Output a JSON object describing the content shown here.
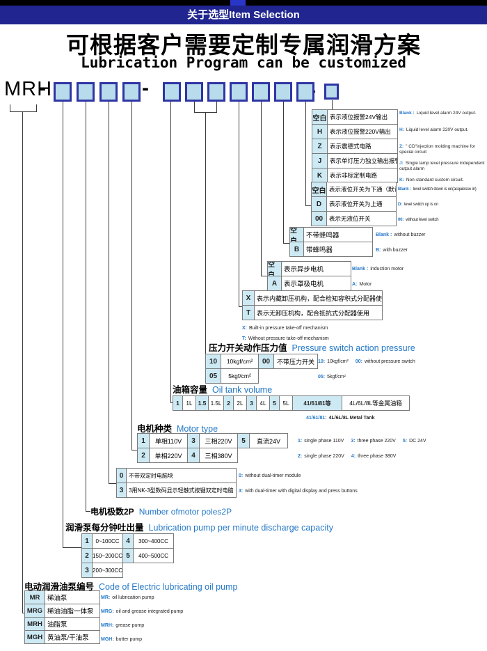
{
  "colors": {
    "navy": "#20258f",
    "tab_blue": "#2a36c8",
    "box_fill": "#b9dcec",
    "box_border": "#2e35a4",
    "cell_fill": "#cdeaf4",
    "blue_text": "#2579c8"
  },
  "header": {
    "bar_text": "关于选型Item Selection"
  },
  "title": {
    "zh": "可根据客户需要定制专属润滑方案",
    "en": "Lubrication Program can be customized"
  },
  "model": {
    "prefix": "MRH",
    "dash": "-"
  },
  "tables": {
    "circuit": {
      "rows": [
        [
          "空白",
          "表示液位报警24V输出"
        ],
        [
          "H",
          "表示液位报警220V输出"
        ],
        [
          "Z",
          "表示震德式电路"
        ],
        [
          "J",
          "表示单灯压力独立输出报警"
        ],
        [
          "K",
          "表示非标定制电路"
        ]
      ],
      "ann": [
        [
          {
            "c": "Blank :",
            "t": "Liquid level alarm 24V output."
          }
        ],
        [
          {
            "c": "H:",
            "t": "Liquid level alarm 220V output."
          }
        ],
        [
          {
            "c": "Z:",
            "t": "\" CD\"injection molding machine for special circuit"
          }
        ],
        [
          {
            "c": "J:",
            "t": "Single lamp level pressure independent output alarm"
          }
        ],
        [
          {
            "c": "K:",
            "t": "Non-standard custom circuit."
          }
        ]
      ]
    },
    "level_switch": {
      "rows": [
        [
          "空白",
          "表示液位开关为下通（默认）"
        ],
        [
          "D",
          "表示液位开关为上通"
        ],
        [
          "00",
          "表示无液位开关"
        ]
      ],
      "ann": [
        [
          {
            "c": "Blank :",
            "t": "level switch down is on(acquiesce in)"
          }
        ],
        [
          {
            "c": "D:",
            "t": "level switch up is on"
          }
        ],
        [
          {
            "c": "00:",
            "t": "without level switch"
          }
        ]
      ]
    },
    "buzzer": {
      "rows": [
        [
          "空白",
          "不带蜂鸣器"
        ],
        [
          "B",
          "带蜂鸣器"
        ]
      ],
      "ann": [
        [
          {
            "c": "Blank :",
            "t": "without buzzer"
          }
        ],
        [
          {
            "c": "B:",
            "t": "with buzzer"
          }
        ]
      ]
    },
    "motor_kind": {
      "rows": [
        [
          "空白",
          "表示异步电机"
        ],
        [
          "A",
          "表示罩极电机"
        ]
      ],
      "ann": [
        [
          {
            "c": "Blank :",
            "t": "induction motor"
          }
        ],
        [
          {
            "c": "A:",
            "t": "Motor"
          }
        ]
      ]
    },
    "relief": {
      "rows": [
        [
          "X",
          "表示内藏卸压机构，配合检知容积式分配器使用"
        ],
        [
          "T",
          "表示无卸压机构，配合抵抗式分配器使用"
        ]
      ],
      "ann": [
        [
          {
            "c": "X:",
            "t": "Built-in pressure take-off mechanism"
          }
        ],
        [
          {
            "c": "T:",
            "t": "Without pressure take-off mechanism"
          }
        ]
      ]
    },
    "pressure": {
      "title_zh": "压力开关动作压力值",
      "title_en": "Pressure switch action pressure",
      "rows": [
        [
          [
            "10",
            "10kgf/cm²"
          ],
          [
            "00",
            "不带压力开关"
          ]
        ],
        [
          [
            "05",
            "5kgf/cm²"
          ]
        ]
      ],
      "ann": [
        [
          {
            "c": "10:",
            "t": "10kgf/cm²"
          },
          {
            "c": "00:",
            "t": "without pressure switch"
          }
        ],
        [
          {
            "c": "05:",
            "t": "5kgf/cm²"
          }
        ]
      ]
    },
    "tank": {
      "title_zh": "油箱容量",
      "title_en": "Oil tank volume",
      "rows": [
        [
          [
            "1",
            "1L"
          ],
          [
            "1.5",
            "1.5L"
          ],
          [
            "2",
            "2L"
          ],
          [
            "3",
            "4L"
          ],
          [
            "5",
            "5L"
          ],
          [
            "41/61/81等",
            "4L/6L/8L等金属油箱"
          ]
        ]
      ],
      "ann": [
        [
          {
            "c": "41/61/81:",
            "t": "4L/6L/8L Metal Tank"
          }
        ]
      ]
    },
    "motor_type": {
      "title_zh": "电机种类",
      "title_en": "Motor type",
      "rows": [
        [
          [
            "1",
            "单相110V"
          ],
          [
            "3",
            "三相220V"
          ],
          [
            "5",
            "直流24V"
          ]
        ],
        [
          [
            "2",
            "单相220V"
          ],
          [
            "4",
            "三相380V"
          ]
        ]
      ],
      "ann": [
        [
          {
            "c": "1:",
            "t": "single phase 110V"
          },
          {
            "c": "3:",
            "t": "three phase 220V"
          },
          {
            "c": "5:",
            "t": "DC 24V"
          }
        ],
        [
          {
            "c": "2:",
            "t": "single phase 220V"
          },
          {
            "c": "4:",
            "t": "three phase 380V"
          }
        ]
      ]
    },
    "timer": {
      "rows": [
        [
          "0",
          "不带双定时电脑块"
        ],
        [
          "3",
          "3用NK-3型数码显示轻触式按键双定时电脑"
        ]
      ],
      "ann": [
        [
          {
            "c": "0:",
            "t": "without dual-timer module"
          }
        ],
        [
          {
            "c": "3:",
            "t": "with dual-timer with digital display and press buttons"
          }
        ]
      ]
    },
    "poles": {
      "zh": "电机极数2P",
      "en": "Number ofmotor poles2P"
    },
    "discharge": {
      "title_zh": "润滑泵每分钟吐出量",
      "title_en": "Lubrication pump per minute discharge capacity",
      "rows": [
        [
          [
            "1",
            "0~100CC"
          ],
          [
            "4",
            "300~400CC"
          ]
        ],
        [
          [
            "2",
            "150~200CC"
          ],
          [
            "5",
            "400~500CC"
          ]
        ],
        [
          [
            "3",
            "200~300CC"
          ]
        ]
      ]
    },
    "pump_code": {
      "title_zh": "电动润滑油泵编号",
      "title_en": "Code of Electric lubricating oil pump",
      "rows": [
        [
          "MR",
          "稀油泵"
        ],
        [
          "MRG",
          "稀油油脂一体泵"
        ],
        [
          "MRH",
          "油脂泵"
        ],
        [
          "MGH",
          "黄油泵/干油泵"
        ]
      ],
      "ann": [
        [
          {
            "c": "MR:",
            "t": "oil lubrication pump"
          }
        ],
        [
          {
            "c": "MRG:",
            "t": "oil and grease integrated pump"
          }
        ],
        [
          {
            "c": "MRH:",
            "t": "grease pump"
          }
        ],
        [
          {
            "c": "MGH:",
            "t": "butter pump"
          }
        ]
      ]
    }
  }
}
